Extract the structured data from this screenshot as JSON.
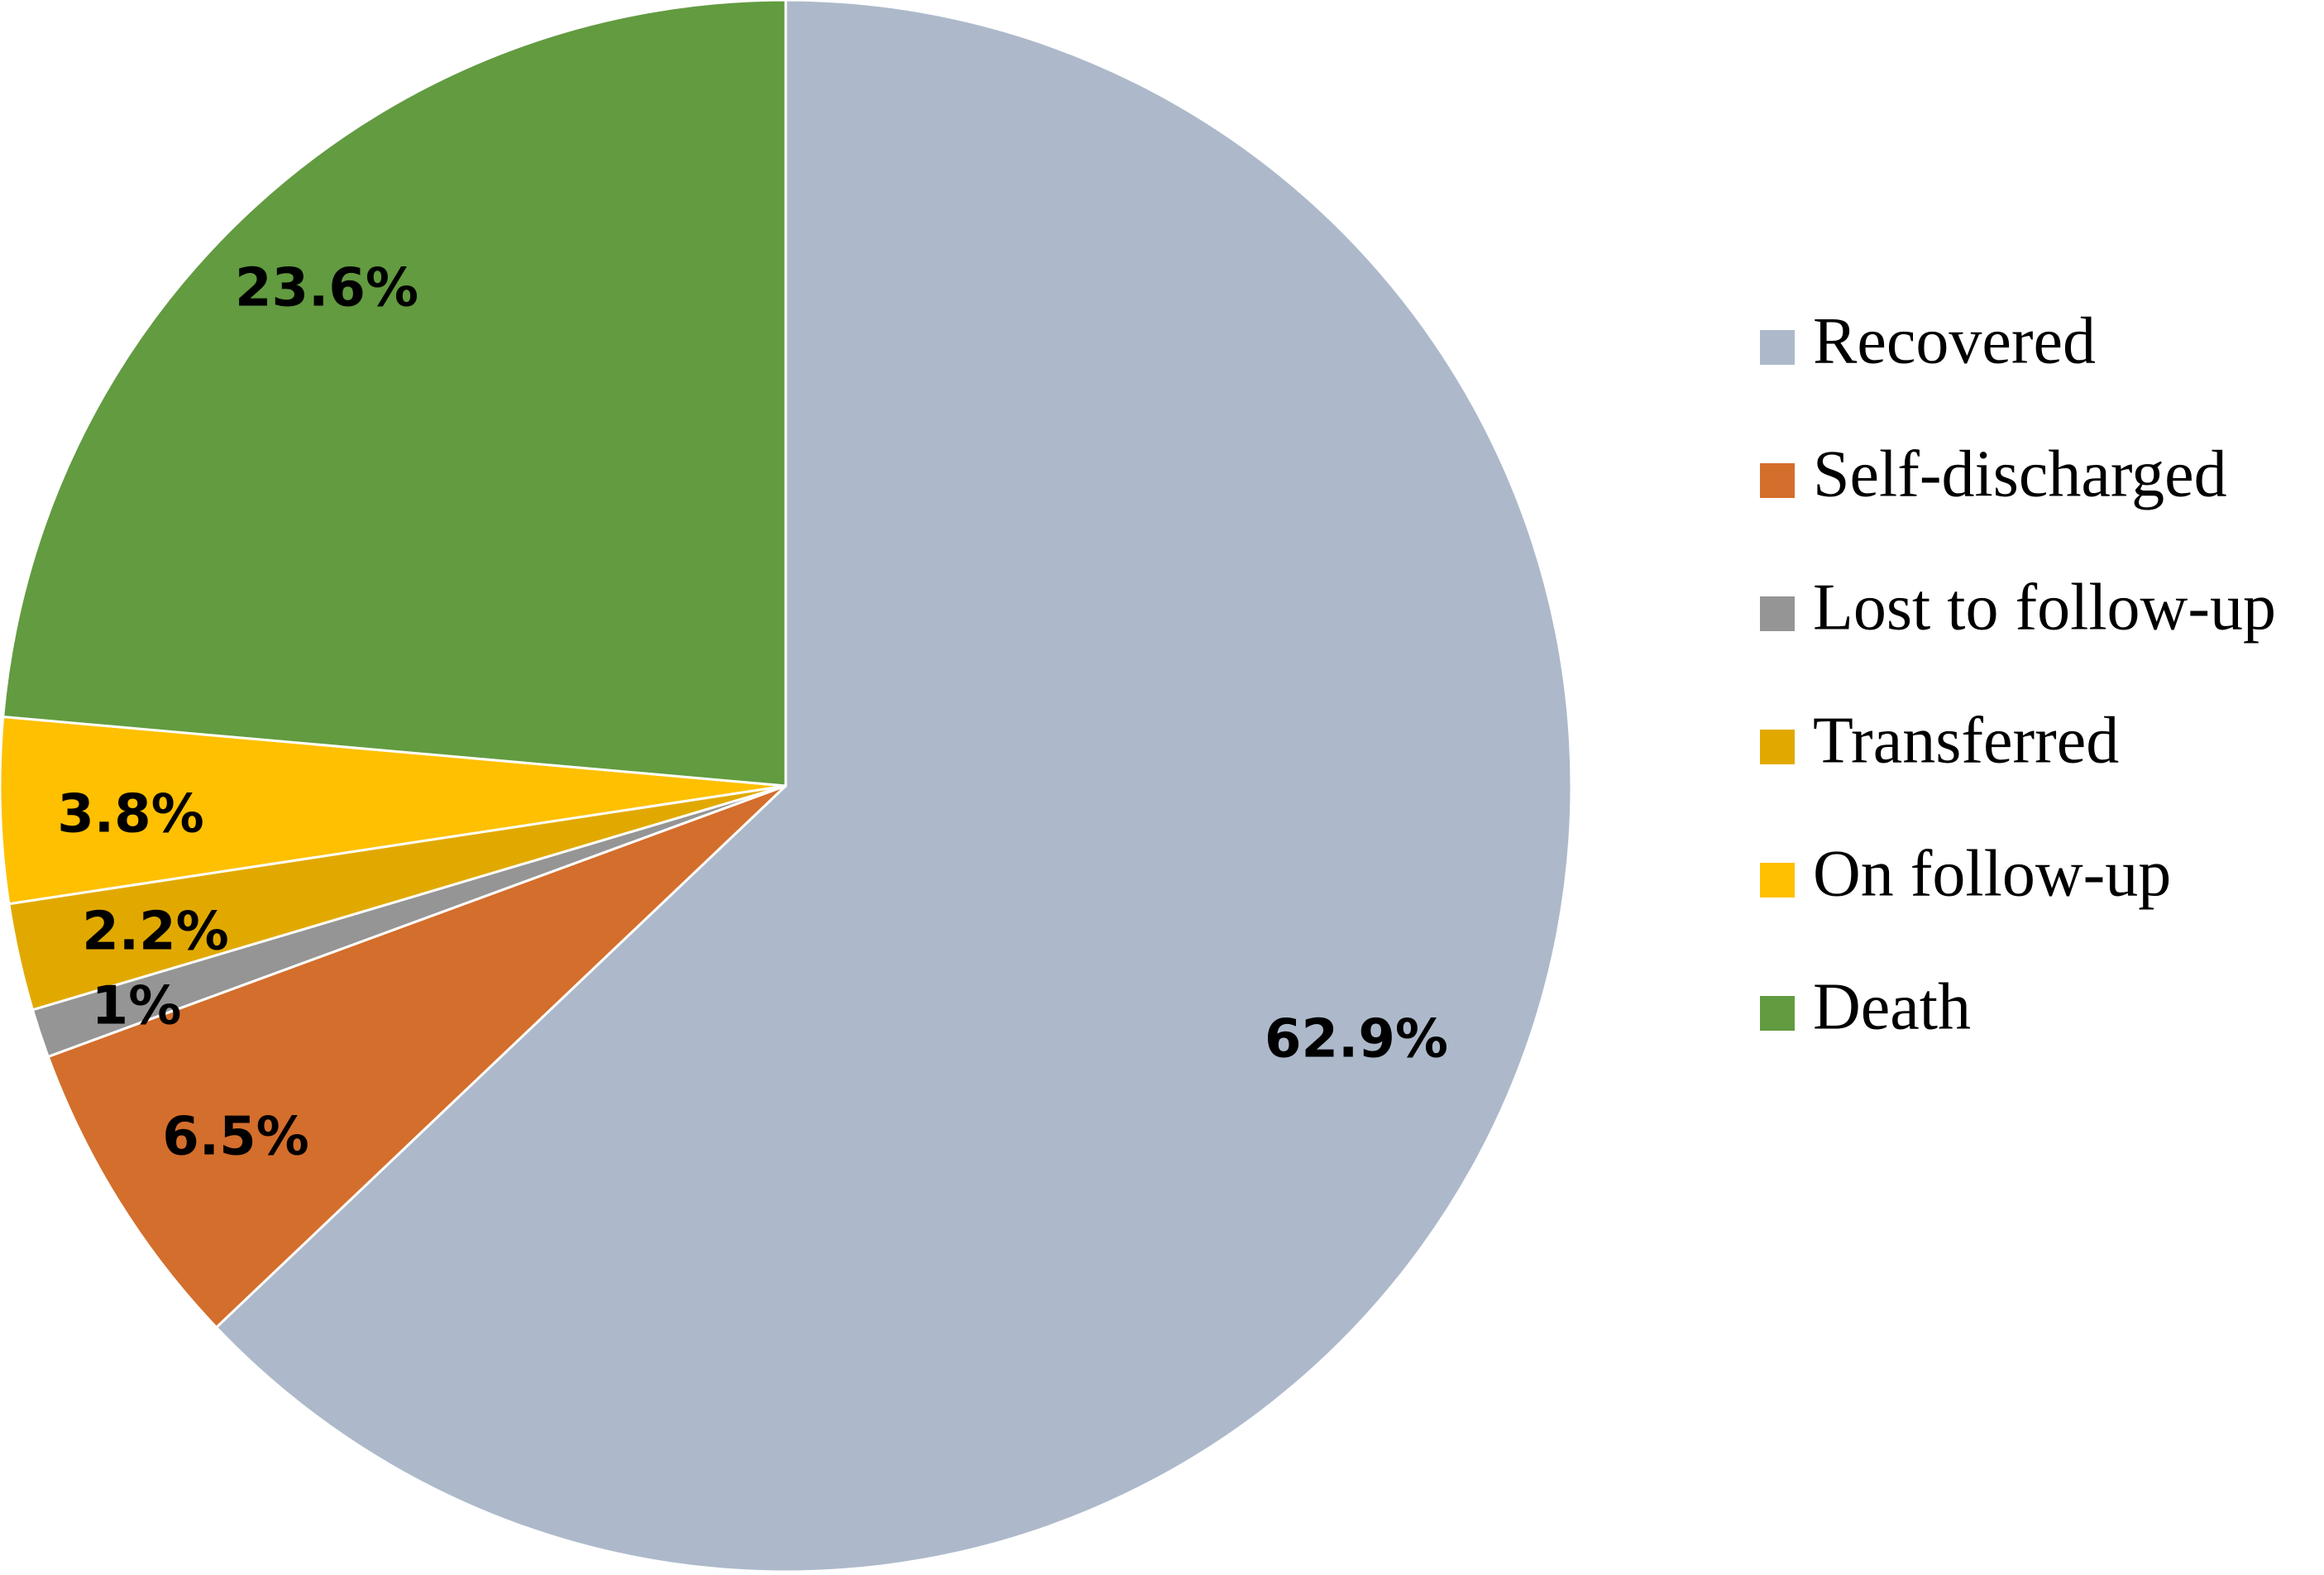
{
  "chart_data": {
    "type": "pie",
    "title": "",
    "legend_position": "right",
    "start_angle_deg": 0,
    "direction": "clockwise",
    "slices": [
      {
        "name": "Recovered",
        "value": 62.9,
        "label": "62.9%",
        "color": "#adb9ca"
      },
      {
        "name": "Self-discharged",
        "value": 6.5,
        "label": "6.5%",
        "color": "#d46e2c"
      },
      {
        "name": "Lost to follow-up",
        "value": 1.0,
        "label": "1%",
        "color": "#959595"
      },
      {
        "name": "Transferred",
        "value": 2.2,
        "label": "2.2%",
        "color": "#e1a900"
      },
      {
        "name": "On follow-up",
        "value": 3.8,
        "label": "3.8%",
        "color": "#fec000"
      },
      {
        "name": "Death",
        "value": 23.6,
        "label": "23.6%",
        "color": "#629b40"
      }
    ]
  }
}
